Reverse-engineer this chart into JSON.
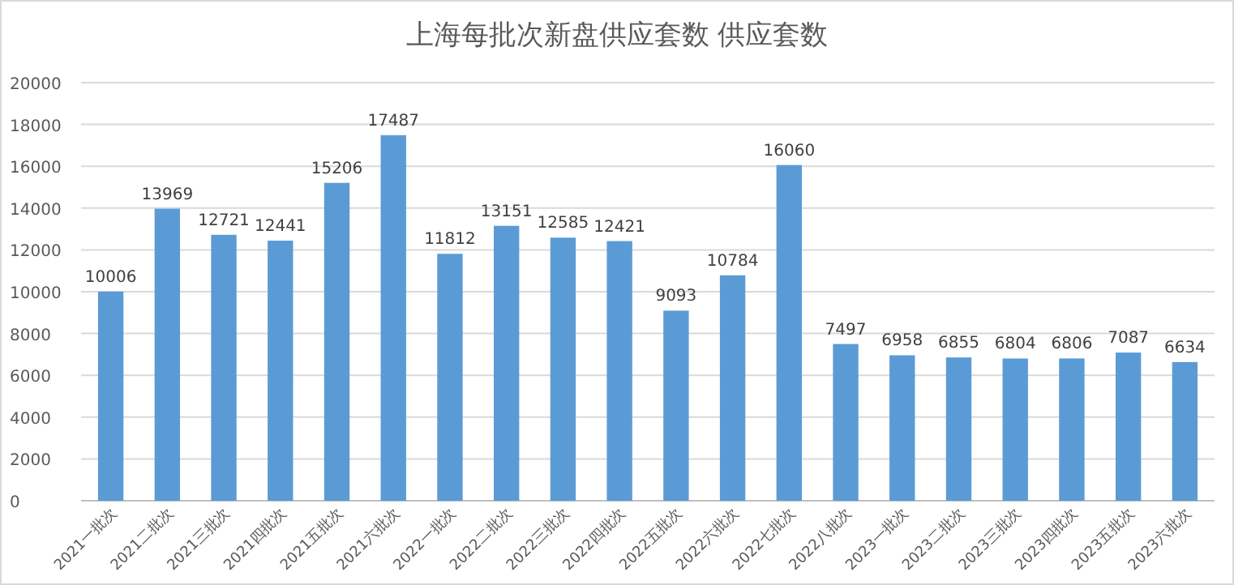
{
  "chart_data": {
    "type": "bar",
    "title": "上海每批次新盘供应套数 供应套数",
    "categories": [
      "2021一批次",
      "2021二批次",
      "2021三批次",
      "2021四批次",
      "2021五批次",
      "2021六批次",
      "2022一批次",
      "2022二批次",
      "2022三批次",
      "2022四批次",
      "2022五批次",
      "2022六批次",
      "2022七批次",
      "2022八批次",
      "2023一批次",
      "2023二批次",
      "2023三批次",
      "2023四批次",
      "2023五批次",
      "2023六批次"
    ],
    "values": [
      10006,
      13969,
      12721,
      12441,
      15206,
      17487,
      11812,
      13151,
      12585,
      12421,
      9093,
      10784,
      16060,
      7497,
      6958,
      6855,
      6804,
      6806,
      7087,
      6634
    ],
    "color": "#5b9bd5",
    "ylim": [
      0,
      20000
    ],
    "yticks": [
      0,
      2000,
      4000,
      6000,
      8000,
      10000,
      12000,
      14000,
      16000,
      18000,
      20000
    ],
    "grid": "y",
    "data_labels": true
  }
}
